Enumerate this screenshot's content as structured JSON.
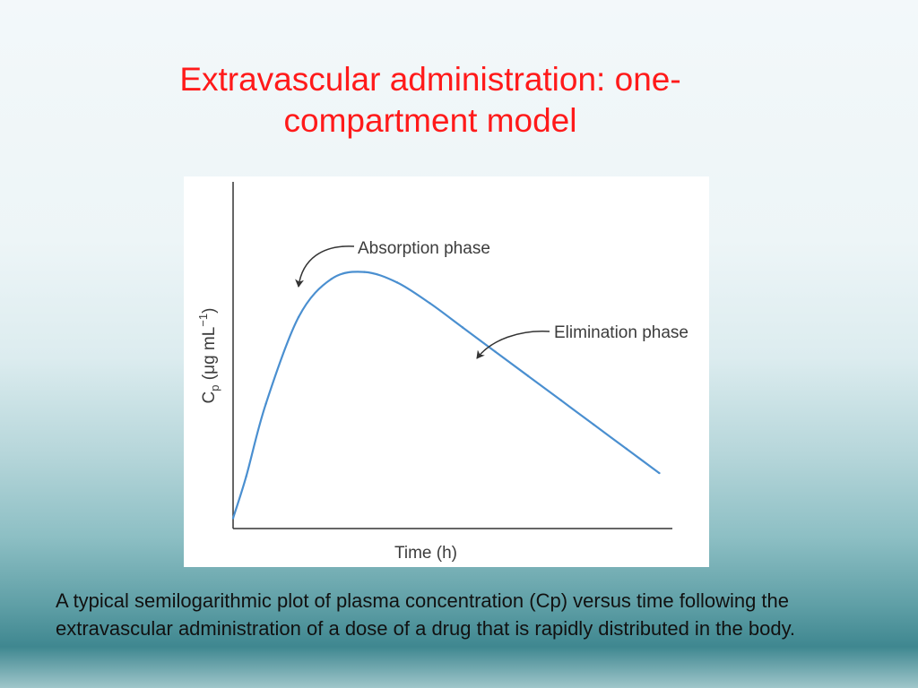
{
  "slide": {
    "title": "Extravascular administration: one-compartment model",
    "caption": "A typical semilogarithmic plot of plasma concentration (Cp) versus time following the extravascular administration of a dose of a drug that is rapidly distributed in the body."
  },
  "chart_data": {
    "type": "line",
    "title": "",
    "xlabel": "Time (h)",
    "ylabel": "Cp (μg mL−1)",
    "ylabel_parts": {
      "main": "C",
      "sub": "p",
      "units": " (μg mL",
      "sup": "−1",
      "close": ")"
    },
    "x_ticks": [],
    "y_ticks": [],
    "grid": false,
    "series": [
      {
        "color": "#4a8fd0",
        "x": [
          0,
          0.4,
          1,
          2,
          3,
          4,
          5,
          6,
          7,
          8,
          9,
          10,
          11,
          12,
          13
        ],
        "y": [
          0.3,
          1.5,
          3.6,
          6.1,
          7.2,
          7.4,
          7.1,
          6.5,
          5.8,
          5.1,
          4.4,
          3.7,
          3.0,
          2.3,
          1.6
        ]
      }
    ],
    "annotations": [
      {
        "text": "Absorption phase",
        "at_x": 2,
        "at_y": 7.0
      },
      {
        "text": "Elimination phase",
        "at_x": 7.6,
        "at_y": 5.2
      }
    ]
  }
}
